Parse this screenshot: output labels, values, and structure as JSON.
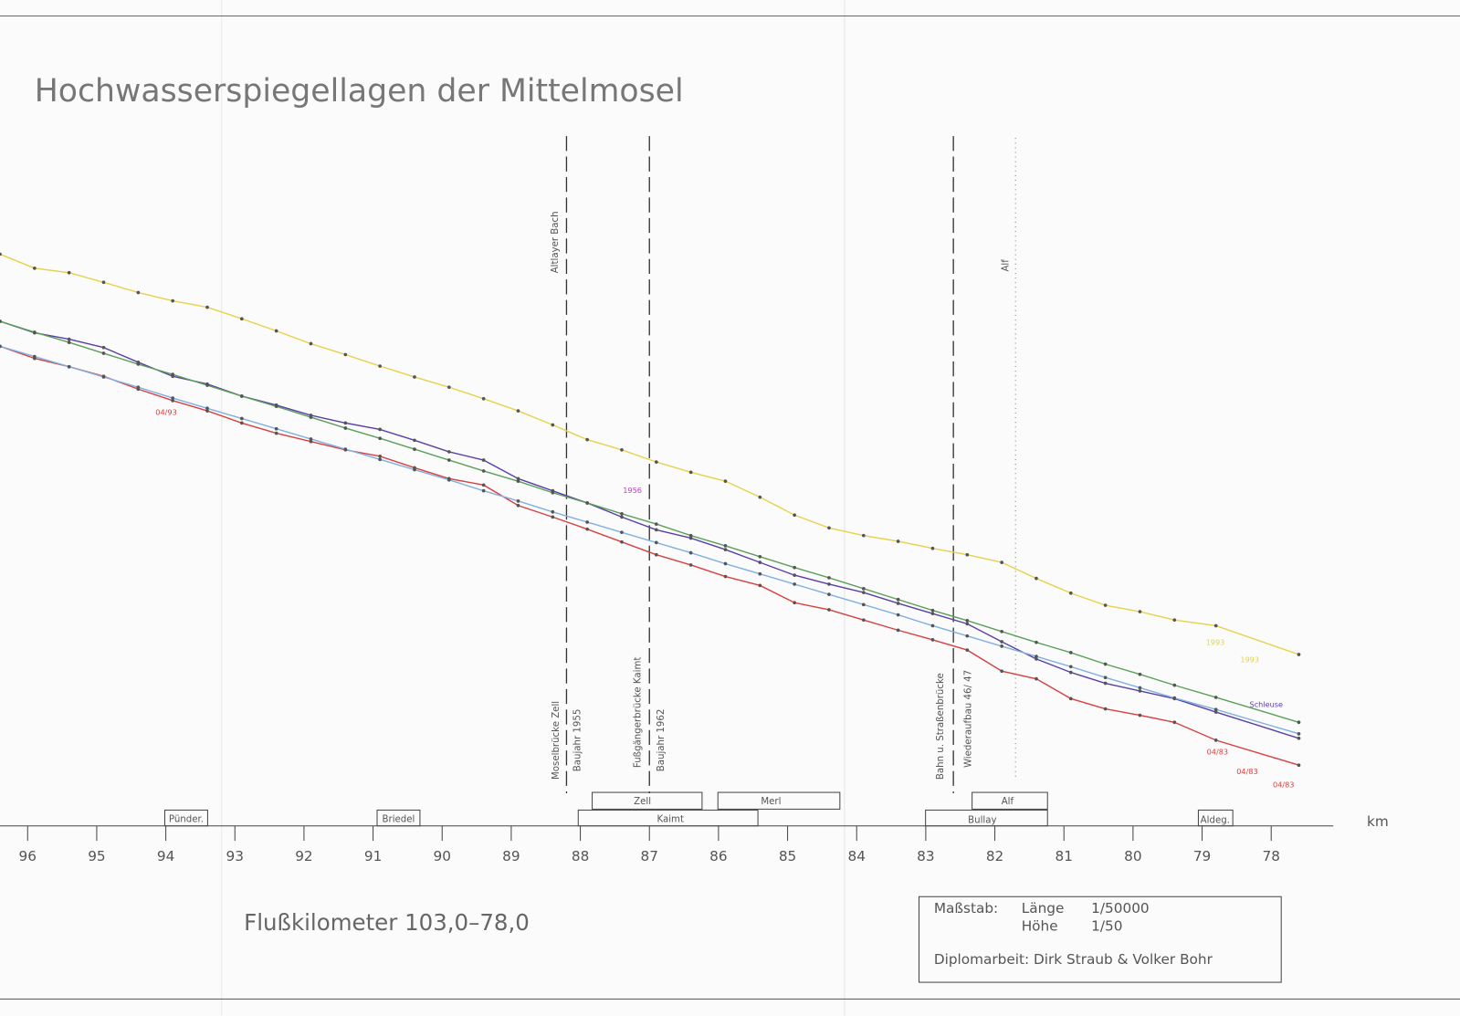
{
  "chart_data": {
    "type": "line",
    "title": "Hochwasserspiegellagen der Mittelmosel",
    "subtitle": "Flußkilometer 103,0–78,0",
    "x_label": "km",
    "xlim": [
      96.4,
      77.1
    ],
    "xticks": [
      96,
      95,
      94,
      93,
      92,
      91,
      90,
      89,
      88,
      87,
      86,
      85,
      84,
      83,
      82,
      81,
      80,
      79,
      78
    ],
    "ylim": [
      0,
      100
    ],
    "x": [
      96.4,
      95.9,
      95.4,
      94.9,
      94.4,
      93.9,
      93.4,
      92.9,
      92.4,
      91.9,
      91.4,
      90.9,
      90.4,
      89.9,
      89.4,
      88.9,
      88.4,
      87.9,
      87.4,
      86.9,
      86.4,
      85.9,
      85.4,
      84.9,
      84.4,
      83.9,
      83.4,
      82.9,
      82.4,
      81.9,
      81.4,
      80.9,
      80.4,
      79.9,
      79.4,
      78.8,
      77.6
    ],
    "series": [
      {
        "color": "#e6d24c",
        "values": [
          89.4,
          87.2,
          86.5,
          85.0,
          83.4,
          82.1,
          81.1,
          79.3,
          77.4,
          75.4,
          73.7,
          71.9,
          70.2,
          68.6,
          66.8,
          64.9,
          62.7,
          60.4,
          58.8,
          56.9,
          55.3,
          53.9,
          51.4,
          48.6,
          46.6,
          45.4,
          44.5,
          43.4,
          42.4,
          41.2,
          38.7,
          36.4,
          34.5,
          33.5,
          32.2,
          31.3,
          26.8
        ]
      },
      {
        "color": "#5a3fa8",
        "values": [
          78.9,
          77.1,
          76.1,
          74.8,
          72.5,
          70.3,
          69.1,
          67.2,
          65.8,
          64.2,
          63.0,
          62.0,
          60.3,
          58.5,
          57.2,
          54.3,
          52.4,
          50.5,
          48.3,
          46.3,
          45.0,
          43.2,
          41.2,
          39.2,
          37.8,
          36.5,
          34.8,
          33.2,
          31.6,
          28.8,
          26.1,
          24.0,
          22.3,
          21.1,
          19.9,
          17.8,
          13.7
        ]
      },
      {
        "color": "#5aa05a",
        "values": [
          78.9,
          77.2,
          75.6,
          73.9,
          72.2,
          70.6,
          68.9,
          67.2,
          65.6,
          63.9,
          62.2,
          60.6,
          58.9,
          57.2,
          55.5,
          53.9,
          52.1,
          50.5,
          48.8,
          47.2,
          45.4,
          43.8,
          42.1,
          40.4,
          38.8,
          37.1,
          35.4,
          33.7,
          32.1,
          30.4,
          28.7,
          27.1,
          25.3,
          23.7,
          22.0,
          20.1,
          16.2
        ]
      },
      {
        "color": "#d84040",
        "values": [
          75.0,
          73.1,
          71.8,
          70.3,
          68.3,
          66.5,
          64.9,
          63.0,
          61.4,
          60.1,
          58.8,
          57.8,
          56.0,
          54.3,
          53.3,
          50.1,
          48.3,
          46.4,
          44.4,
          42.4,
          40.8,
          39.0,
          37.6,
          34.9,
          33.8,
          32.2,
          30.6,
          29.1,
          27.5,
          24.2,
          23.0,
          19.9,
          18.3,
          17.3,
          16.2,
          13.4,
          9.5
        ]
      },
      {
        "color": "#80b0e0",
        "values": [
          75.0,
          73.4,
          71.8,
          70.2,
          68.6,
          66.9,
          65.3,
          63.7,
          62.1,
          60.5,
          58.9,
          57.3,
          55.7,
          54.1,
          52.4,
          50.8,
          49.1,
          47.5,
          45.9,
          44.3,
          42.7,
          41.0,
          39.4,
          37.8,
          36.2,
          34.6,
          33.0,
          31.3,
          29.7,
          28.1,
          26.5,
          24.9,
          23.2,
          21.6,
          20.0,
          18.2,
          14.4
        ]
      }
    ],
    "vertical_lines": [
      88.2,
      87.0,
      82.6,
      81.7
    ],
    "line_labels": [
      "Altlayer Bach",
      "Moselbrücke Zell",
      "Baujahr 1955",
      "Fußgängerbrücke Kaimt",
      "Baujahr 1962",
      "Bahn u. Straßenbrücke",
      "Wiederaufbau 46/ 47",
      "Alf"
    ],
    "places": [
      "Pünder.",
      "Briedel",
      "Zell",
      "Merl",
      "Kaimt",
      "Alf",
      "Bullay",
      "Aldeg."
    ],
    "annotations": [
      "04/93",
      "1956",
      "1993",
      "1993",
      "Schleuse",
      "04/83",
      "04/83",
      "04/83"
    ],
    "scale_box": {
      "label": "Maßstab:",
      "length": "Länge",
      "length_value": "1/50000",
      "height": "Höhe",
      "height_value": "1/50",
      "credit": "Diplomarbeit: Dirk Straub & Volker Bohr"
    }
  }
}
